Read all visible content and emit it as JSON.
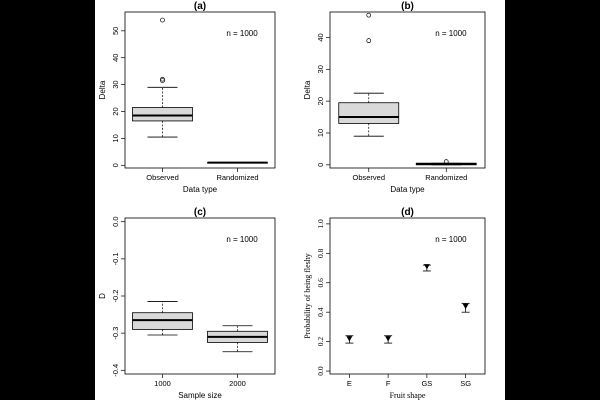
{
  "chart_data": [
    {
      "id": "a",
      "type": "box",
      "title": "(a)",
      "xlabel": "Data type",
      "ylabel": "Delta",
      "annotation": "n = 1000",
      "ylim": [
        -1,
        57
      ],
      "yticks": [
        0,
        10,
        20,
        30,
        40,
        50
      ],
      "categories": [
        "Observed",
        "Randomized"
      ],
      "boxes": [
        {
          "whislo": 10.5,
          "q1": 16.5,
          "med": 18.5,
          "q3": 21.5,
          "whishi": 29,
          "outliers": [
            31.5,
            32,
            54
          ]
        },
        {
          "whislo": 1,
          "q1": 1,
          "med": 1,
          "q3": 1,
          "whishi": 1,
          "outliers": []
        }
      ]
    },
    {
      "id": "b",
      "type": "box",
      "title": "(b)",
      "xlabel": "Data type",
      "ylabel": "Delta",
      "annotation": "n = 1000",
      "ylim": [
        -1,
        48
      ],
      "yticks": [
        0,
        10,
        20,
        30,
        40
      ],
      "categories": [
        "Observed",
        "Randomized"
      ],
      "boxes": [
        {
          "whislo": 9,
          "q1": 13,
          "med": 15,
          "q3": 19.5,
          "whishi": 22.5,
          "outliers": [
            39,
            47
          ]
        },
        {
          "whislo": 0,
          "q1": 0,
          "med": 0.3,
          "q3": 0.5,
          "whishi": 0.5,
          "outliers": [
            1
          ]
        }
      ]
    },
    {
      "id": "c",
      "type": "box",
      "title": "(c)",
      "xlabel": "Sample size",
      "ylabel": "D",
      "annotation": "n = 1000",
      "ylim": [
        -0.41,
        0.01
      ],
      "yticks": [
        0.0,
        -0.1,
        -0.2,
        -0.3,
        -0.4
      ],
      "ytick_labels": [
        "0.0",
        "-0.1",
        "-0.2",
        "-0.3",
        "-0.4"
      ],
      "categories": [
        "1000",
        "2000"
      ],
      "boxes": [
        {
          "whislo": -0.305,
          "q1": -0.29,
          "med": -0.265,
          "q3": -0.245,
          "whishi": -0.215,
          "outliers": []
        },
        {
          "whislo": -0.35,
          "q1": -0.325,
          "med": -0.31,
          "q3": -0.295,
          "whishi": -0.28,
          "outliers": []
        }
      ]
    },
    {
      "id": "d",
      "type": "scatter",
      "title": "(d)",
      "xlabel": "Fruit shape",
      "ylabel": "Probability of being fleshy",
      "annotation": "n = 1000",
      "ylim": [
        -0.02,
        1.04
      ],
      "yticks": [
        0.0,
        0.2,
        0.4,
        0.6,
        0.8,
        1.0
      ],
      "ytick_labels": [
        "0.0",
        "0.2",
        "0.4",
        "0.6",
        "0.8",
        "1.0"
      ],
      "categories": [
        "E",
        "F",
        "GS",
        "SG"
      ],
      "points": [
        {
          "category": "E",
          "y": 0.22,
          "lo": 0.19,
          "hi": 0.24
        },
        {
          "category": "F",
          "y": 0.22,
          "lo": 0.19,
          "hi": 0.24
        },
        {
          "category": "GS",
          "y": 0.71,
          "lo": 0.68,
          "hi": 0.72
        },
        {
          "category": "SG",
          "y": 0.44,
          "lo": 0.4,
          "hi": 0.46
        }
      ]
    }
  ]
}
